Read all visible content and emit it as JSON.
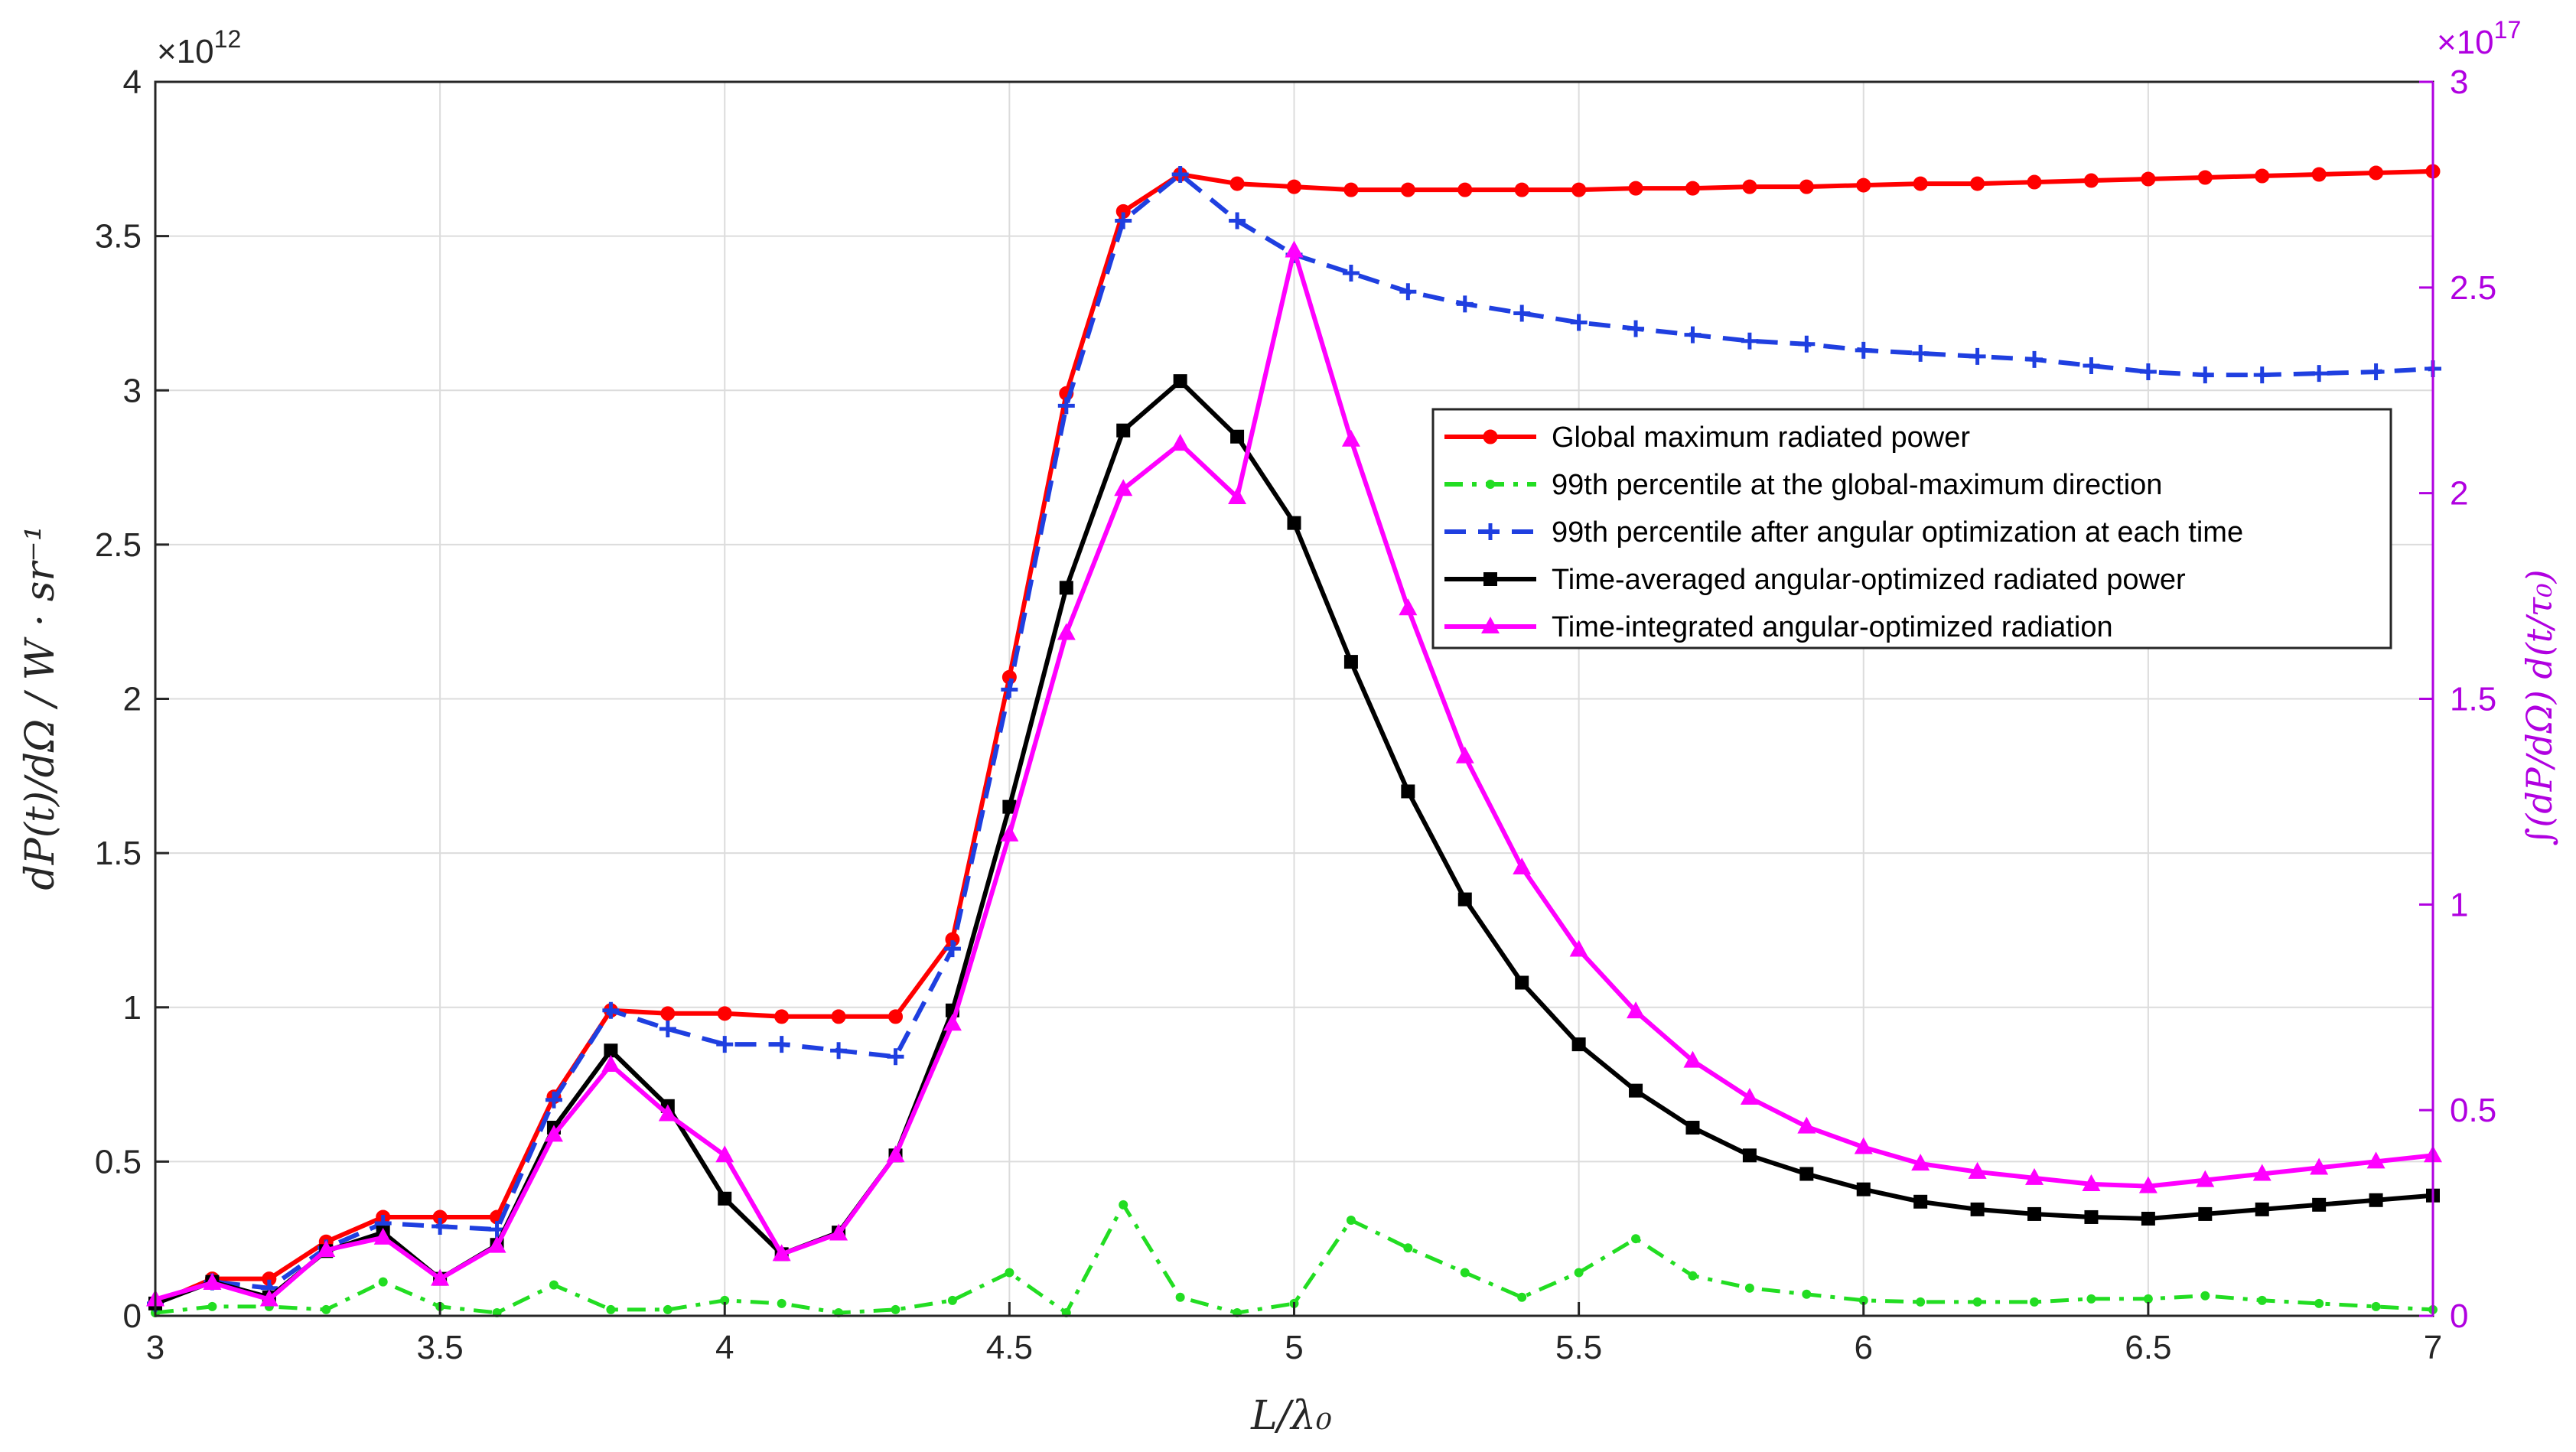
{
  "chart_data": {
    "type": "line",
    "xlabel": "L/λ₀",
    "ylabel_left": "dP(t)/dΩ / W · sr⁻¹",
    "ylabel_right": "∫(dP/dΩ) d(t/τ₀)",
    "left_exponent": "×10",
    "left_exponent_power": "12",
    "right_exponent": "×10",
    "right_exponent_power": "17",
    "xlim": [
      3,
      7
    ],
    "ylim_left": [
      0,
      4
    ],
    "ylim_right": [
      0,
      3
    ],
    "xticks": [
      "3",
      "3.5",
      "4",
      "4.5",
      "5",
      "5.5",
      "6",
      "6.5",
      "7"
    ],
    "yticks_left": [
      "0",
      "0.5",
      "1",
      "1.5",
      "2",
      "2.5",
      "3",
      "3.5",
      "4"
    ],
    "yticks_right": [
      "0",
      "0.5",
      "1",
      "1.5",
      "2",
      "2.5",
      "3"
    ],
    "grid": true,
    "legend_position": "center-right",
    "x": [
      3.0,
      3.1,
      3.2,
      3.3,
      3.4,
      3.5,
      3.6,
      3.7,
      3.8,
      3.9,
      4.0,
      4.1,
      4.2,
      4.3,
      4.4,
      4.5,
      4.6,
      4.7,
      4.8,
      4.9,
      5.0,
      5.1,
      5.2,
      5.3,
      5.4,
      5.5,
      5.6,
      5.7,
      5.8,
      5.9,
      6.0,
      6.1,
      6.2,
      6.3,
      6.4,
      6.5,
      6.6,
      6.7,
      6.8,
      6.9,
      7.0
    ],
    "series": [
      {
        "name": "Global maximum radiated power",
        "axis": "left",
        "color": "#ff0000",
        "style": "solid",
        "marker": "circle",
        "values": [
          0.04,
          0.12,
          0.12,
          0.24,
          0.32,
          0.32,
          0.32,
          0.71,
          0.99,
          0.98,
          0.98,
          0.97,
          0.97,
          0.97,
          1.22,
          2.07,
          2.99,
          3.58,
          3.7,
          3.67,
          3.66,
          3.65,
          3.65,
          3.65,
          3.65,
          3.65,
          3.655,
          3.655,
          3.66,
          3.66,
          3.665,
          3.67,
          3.67,
          3.675,
          3.68,
          3.685,
          3.69,
          3.695,
          3.7,
          3.705,
          3.71
        ]
      },
      {
        "name": "99th percentile at the global-maximum direction",
        "axis": "left",
        "color": "#22dd22",
        "style": "dashdot",
        "marker": "dot",
        "values": [
          0.01,
          0.03,
          0.03,
          0.02,
          0.11,
          0.03,
          0.01,
          0.1,
          0.02,
          0.02,
          0.05,
          0.04,
          0.01,
          0.02,
          0.05,
          0.14,
          0.01,
          0.36,
          0.06,
          0.01,
          0.04,
          0.31,
          0.22,
          0.14,
          0.06,
          0.14,
          0.25,
          0.13,
          0.09,
          0.07,
          0.05,
          0.045,
          0.045,
          0.045,
          0.055,
          0.055,
          0.065,
          0.05,
          0.04,
          0.03,
          0.02
        ]
      },
      {
        "name": "99th percentile after angular optimization at each time",
        "axis": "left",
        "color": "#1f3fe0",
        "style": "dashed",
        "marker": "plus",
        "values": [
          0.04,
          0.11,
          0.09,
          0.22,
          0.3,
          0.29,
          0.28,
          0.7,
          0.99,
          0.93,
          0.88,
          0.88,
          0.86,
          0.84,
          1.19,
          2.03,
          2.95,
          3.55,
          3.7,
          3.55,
          3.44,
          3.38,
          3.32,
          3.28,
          3.25,
          3.22,
          3.2,
          3.18,
          3.16,
          3.15,
          3.13,
          3.12,
          3.11,
          3.1,
          3.08,
          3.06,
          3.05,
          3.05,
          3.055,
          3.06,
          3.07
        ]
      },
      {
        "name": "Time-averaged angular-optimized radiated power",
        "axis": "left",
        "color": "#000000",
        "style": "solid",
        "marker": "square",
        "values": [
          0.04,
          0.11,
          0.06,
          0.21,
          0.27,
          0.12,
          0.23,
          0.61,
          0.86,
          0.68,
          0.38,
          0.2,
          0.27,
          0.52,
          0.99,
          1.65,
          2.36,
          2.87,
          3.03,
          2.85,
          2.57,
          2.12,
          1.7,
          1.35,
          1.08,
          0.88,
          0.73,
          0.61,
          0.52,
          0.46,
          0.41,
          0.37,
          0.345,
          0.33,
          0.32,
          0.315,
          0.33,
          0.345,
          0.36,
          0.375,
          0.39
        ]
      },
      {
        "name": "Time-integrated angular-optimized radiation",
        "axis": "right",
        "color": "#ff00ff",
        "style": "solid",
        "marker": "triangle",
        "values": [
          0.04,
          0.08,
          0.04,
          0.16,
          0.19,
          0.09,
          0.17,
          0.44,
          0.61,
          0.49,
          0.39,
          0.15,
          0.2,
          0.39,
          0.71,
          1.17,
          1.66,
          2.01,
          2.12,
          1.99,
          2.59,
          2.13,
          1.72,
          1.36,
          1.09,
          0.89,
          0.74,
          0.62,
          0.53,
          0.46,
          0.41,
          0.37,
          0.35,
          0.335,
          0.32,
          0.315,
          0.33,
          0.345,
          0.36,
          0.375,
          0.39
        ]
      }
    ]
  }
}
